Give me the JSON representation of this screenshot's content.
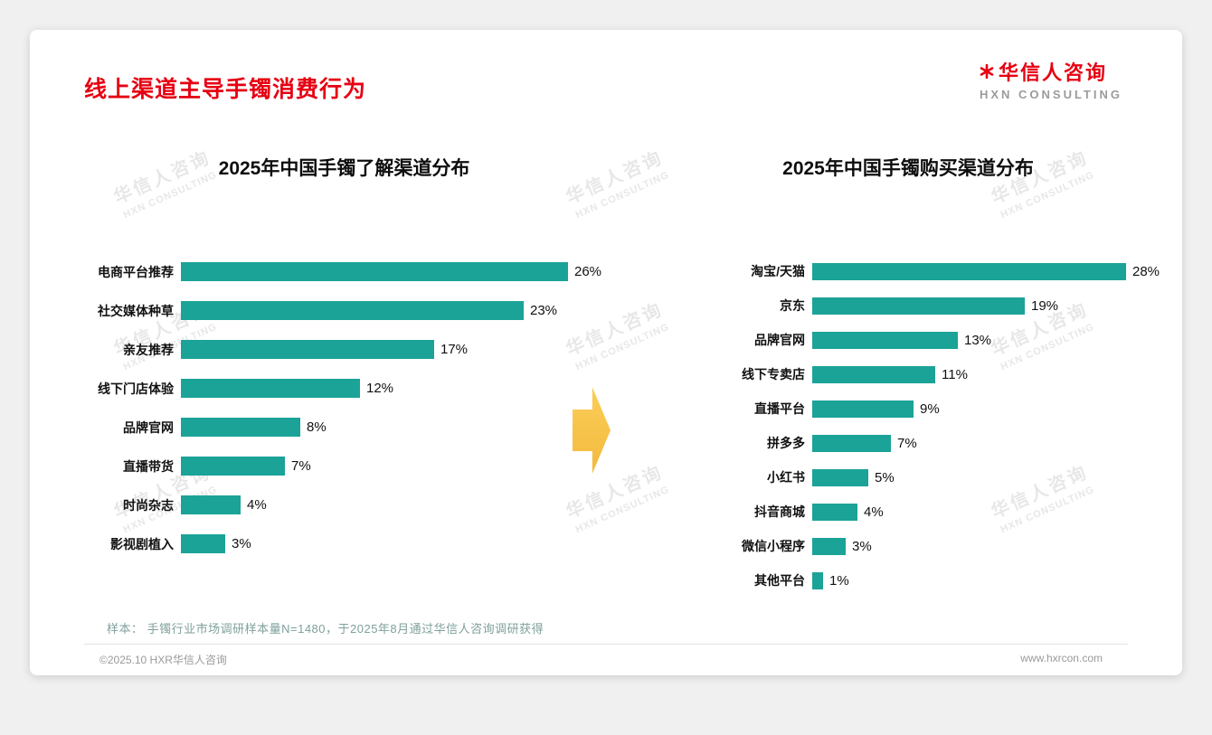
{
  "page": {
    "title": "线上渠道主导手镯消费行为",
    "logo": {
      "cn": "华信人咨询",
      "en": "HXN CONSULTING"
    },
    "watermark": {
      "cn": "华信人咨询",
      "en": "HXN CONSULTING"
    },
    "footer": {
      "sample_note": "样本： 手镯行业市场调研样本量N=1480，于2025年8月通过华信人咨询调研获得",
      "copyright": "©2025.10 HXR华信人咨询",
      "website": "www.hxrcon.com"
    },
    "colors": {
      "accent_red": "#E60012",
      "bar_teal": "#1BA397",
      "arrow_gold": "#F5C242"
    }
  },
  "chart_data": [
    {
      "type": "bar",
      "orientation": "horizontal",
      "title": "2025年中国手镯了解渠道分布",
      "categories": [
        "电商平台推荐",
        "社交媒体种草",
        "亲友推荐",
        "线下门店体验",
        "品牌官网",
        "直播带货",
        "时尚杂志",
        "影视剧植入"
      ],
      "values": [
        26,
        23,
        17,
        12,
        8,
        7,
        4,
        3
      ],
      "unit": "%",
      "xlim": [
        0,
        28
      ],
      "grid": false,
      "value_labels": "outside-end"
    },
    {
      "type": "bar",
      "orientation": "horizontal",
      "title": "2025年中国手镯购买渠道分布",
      "categories": [
        "淘宝/天猫",
        "京东",
        "品牌官网",
        "线下专卖店",
        "直播平台",
        "拼多多",
        "小红书",
        "抖音商城",
        "微信小程序",
        "其他平台"
      ],
      "values": [
        28,
        19,
        13,
        11,
        9,
        7,
        5,
        4,
        3,
        1
      ],
      "unit": "%",
      "xlim": [
        0,
        30
      ],
      "grid": false,
      "value_labels": "outside-end"
    }
  ]
}
